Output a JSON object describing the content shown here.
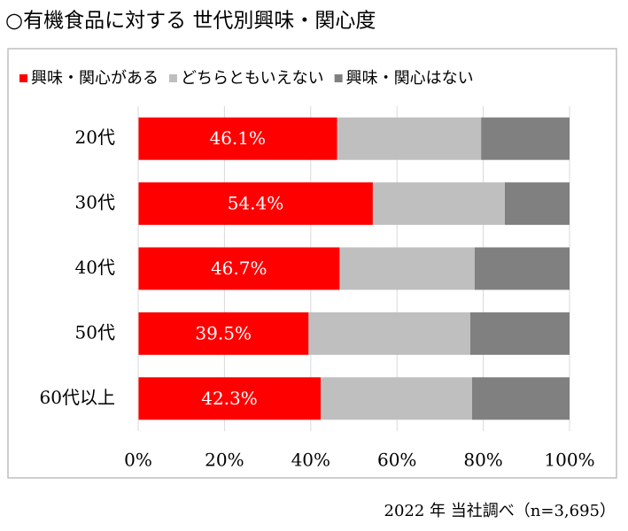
{
  "title": "○有機食品に対する 世代別興味・関心度",
  "footer": "2022 年 当社調べ（n=3,695）",
  "chart_data": {
    "type": "stacked-bar-horizontal",
    "categories": [
      "20代",
      "30代",
      "40代",
      "50代",
      "60代以上"
    ],
    "series": [
      {
        "name": "興味・関心がある",
        "color": "#ff0000",
        "values": [
          46.1,
          54.4,
          46.7,
          39.5,
          42.3
        ],
        "value_labels": [
          "46.1%",
          "54.4%",
          "46.7%",
          "39.5%",
          "42.3%"
        ]
      },
      {
        "name": "どちらともいえない",
        "color": "#bfbfbf",
        "values": [
          33.4,
          30.6,
          31.3,
          37.5,
          35.1
        ]
      },
      {
        "name": "興味・関心はない",
        "color": "#808080",
        "values": [
          20.5,
          15.0,
          22.0,
          23.0,
          22.6
        ]
      }
    ],
    "xlim": [
      0,
      100
    ],
    "xticks": [
      {
        "value": 0,
        "label": "0%"
      },
      {
        "value": 20,
        "label": "20%"
      },
      {
        "value": 40,
        "label": "40%"
      },
      {
        "value": 60,
        "label": "60%"
      },
      {
        "value": 80,
        "label": "80%"
      },
      {
        "value": 100,
        "label": "100%"
      }
    ],
    "grid": true,
    "legend": "top"
  }
}
